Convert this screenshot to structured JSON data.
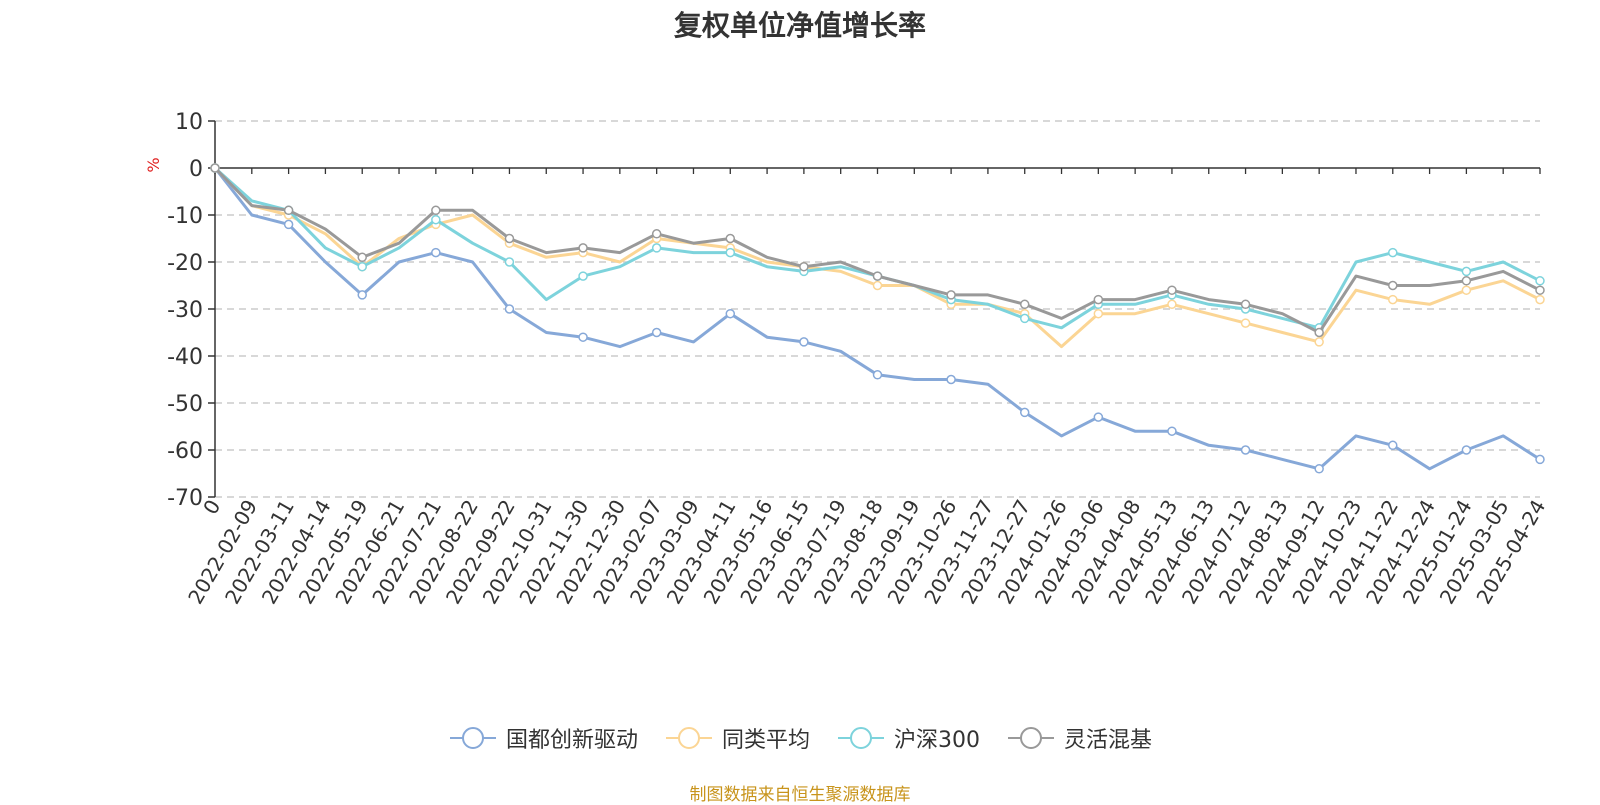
{
  "chart_data": {
    "type": "line",
    "title": "复权单位净值增长率",
    "ylabel": "%",
    "ylim": [
      -70,
      10
    ],
    "yticks": [
      10,
      0,
      -10,
      -20,
      -30,
      -40,
      -50,
      -60,
      -70
    ],
    "grid": true,
    "legend_position": "bottom-center",
    "x_tick_labels": [
      "0",
      "2022-02-09",
      "2022-03-11",
      "2022-04-14",
      "2022-05-19",
      "2022-06-21",
      "2022-07-21",
      "2022-08-22",
      "2022-09-22",
      "2022-10-31",
      "2022-11-30",
      "2022-12-30",
      "2023-02-07",
      "2023-03-09",
      "2023-04-11",
      "2023-05-16",
      "2023-06-15",
      "2023-07-19",
      "2023-08-18",
      "2023-09-19",
      "2023-10-26",
      "2023-11-27",
      "2023-12-27",
      "2024-01-26",
      "2024-03-06",
      "2024-04-08",
      "2024-05-13",
      "2024-06-13",
      "2024-07-12",
      "2024-08-13",
      "2024-09-12",
      "2024-10-23",
      "2024-11-22",
      "2024-12-24",
      "2025-01-24",
      "2025-03-05",
      "2025-04-24"
    ],
    "x": [
      "0",
      "2022-02-09",
      "2022-03-11",
      "2022-04-14",
      "2022-05-19",
      "2022-06-21",
      "2022-07-21",
      "2022-08-22",
      "2022-09-22",
      "2022-10-31",
      "2022-11-30",
      "2022-12-30",
      "2023-02-07",
      "2023-03-09",
      "2023-04-11",
      "2023-05-16",
      "2023-06-15",
      "2023-07-19",
      "2023-08-18",
      "2023-09-19",
      "2023-10-26",
      "2023-11-27",
      "2023-12-27",
      "2024-01-26",
      "2024-03-06",
      "2024-04-08",
      "2024-05-13",
      "2024-06-13",
      "2024-07-12",
      "2024-08-13",
      "2024-09-12",
      "2024-10-23",
      "2024-11-22",
      "2024-12-24",
      "2025-01-24",
      "2025-03-05",
      "2025-04-24"
    ],
    "series": [
      {
        "name": "国都创新驱动",
        "color": "#86a8d8",
        "values": [
          0,
          -10,
          -12,
          -20,
          -27,
          -20,
          -18,
          -20,
          -30,
          -35,
          -36,
          -38,
          -35,
          -37,
          -31,
          -36,
          -37,
          -39,
          -44,
          -45,
          -45,
          -46,
          -52,
          -57,
          -53,
          -56,
          -56,
          -59,
          -60,
          -62,
          -64,
          -57,
          -59,
          -64,
          -60,
          -57,
          -62
        ]
      },
      {
        "name": "同类平均",
        "color": "#fbd594",
        "values": [
          0,
          -8,
          -10,
          -14,
          -21,
          -15,
          -12,
          -10,
          -16,
          -19,
          -18,
          -20,
          -15,
          -16,
          -17,
          -20,
          -21,
          -22,
          -25,
          -25,
          -29,
          -29,
          -31,
          -38,
          -31,
          -31,
          -29,
          -31,
          -33,
          -35,
          -37,
          -26,
          -28,
          -29,
          -26,
          -24,
          -28
        ]
      },
      {
        "name": "沪深300",
        "color": "#7dd3dc",
        "values": [
          0,
          -7,
          -9,
          -17,
          -21,
          -17,
          -11,
          -16,
          -20,
          -28,
          -23,
          -21,
          -17,
          -18,
          -18,
          -21,
          -22,
          -21,
          -23,
          -25,
          -28,
          -29,
          -32,
          -34,
          -29,
          -29,
          -27,
          -29,
          -30,
          -32,
          -34,
          -20,
          -18,
          -20,
          -22,
          -20,
          -24
        ]
      },
      {
        "name": "灵活混基",
        "color": "#999999",
        "values": [
          0,
          -8,
          -9,
          -13,
          -19,
          -16,
          -9,
          -9,
          -15,
          -18,
          -17,
          -18,
          -14,
          -16,
          -15,
          -19,
          -21,
          -20,
          -23,
          -25,
          -27,
          -27,
          -29,
          -32,
          -28,
          -28,
          -26,
          -28,
          -29,
          -31,
          -35,
          -23,
          -25,
          -25,
          -24,
          -22,
          -26
        ]
      }
    ]
  },
  "source_note": "制图数据来自恒生聚源数据库",
  "colors": {
    "axis": "#333333",
    "grid": "#cccccc",
    "ylabel": "#e02020",
    "source_note": "#c8941c"
  }
}
